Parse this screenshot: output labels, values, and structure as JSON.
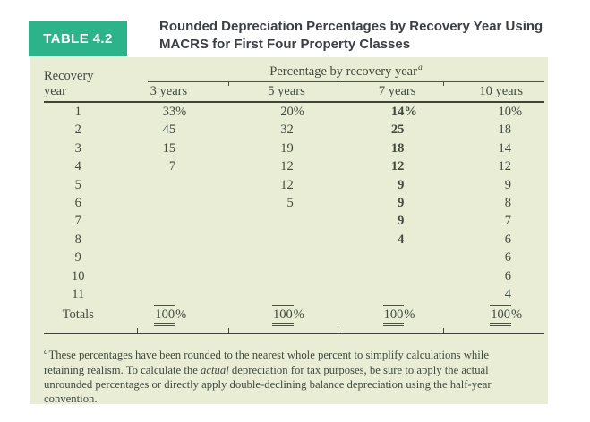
{
  "colors": {
    "accent": "#2db389",
    "panel_bg": "#e9edd6",
    "ink": "#414a3f",
    "rule": "#4b5145",
    "rule_heavy": "#3f4538",
    "title": "#3b3e42"
  },
  "badge": {
    "label": "TABLE 4.2"
  },
  "title": {
    "line1": "Rounded Depreciation Percentages by Recovery Year Using",
    "line2": "MACRS for First Four Property Classes"
  },
  "table": {
    "span_header": {
      "text": "Percentage by recovery year",
      "sup": "a"
    },
    "columns": [
      "Recovery year",
      "3 years",
      "5 years",
      "7 years",
      "10 years"
    ],
    "bold_value_column": 2,
    "rows": [
      {
        "year": "1",
        "values": [
          "33%",
          "20%",
          "14%",
          "10%"
        ]
      },
      {
        "year": "2",
        "values": [
          "45",
          "32",
          "25",
          "18"
        ]
      },
      {
        "year": "3",
        "values": [
          "15",
          "19",
          "18",
          "14"
        ]
      },
      {
        "year": "4",
        "values": [
          "7",
          "12",
          "12",
          "12"
        ]
      },
      {
        "year": "5",
        "values": [
          "",
          "12",
          "9",
          "9"
        ]
      },
      {
        "year": "6",
        "values": [
          "",
          "5",
          "9",
          "8"
        ]
      },
      {
        "year": "7",
        "values": [
          "",
          "",
          "9",
          "7"
        ]
      },
      {
        "year": "8",
        "values": [
          "",
          "",
          "4",
          "6"
        ]
      },
      {
        "year": "9",
        "values": [
          "",
          "",
          "",
          "6"
        ]
      },
      {
        "year": "10",
        "values": [
          "",
          "",
          "",
          "6"
        ]
      },
      {
        "year": "11",
        "values": [
          "",
          "",
          "",
          "4"
        ]
      }
    ],
    "totals": {
      "label": "Totals",
      "values": [
        "100%",
        "100%",
        "100%",
        "100%"
      ]
    }
  },
  "footnote": {
    "sup": "a",
    "line1": "These percentages have been rounded to the nearest whole percent to simplify calculations while",
    "line2_pre": "retaining realism. To calculate the ",
    "line2_italic": "actual",
    "line2_post": " depreciation for tax purposes, be sure to apply the actual",
    "line3": "unrounded percentages or directly apply double-declining balance depreciation using the half-year",
    "line4": "convention."
  }
}
